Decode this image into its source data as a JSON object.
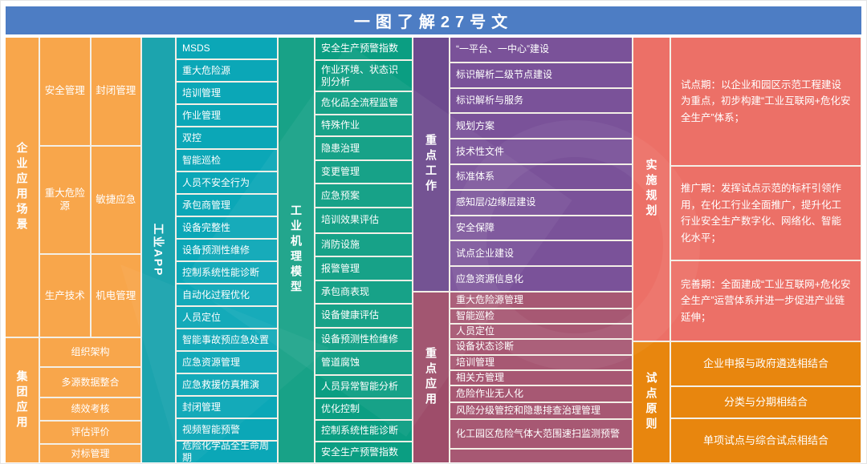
{
  "header": {
    "title": "一图了解27号文"
  },
  "colors": {
    "header_bg": "#4d7dc4",
    "orange": "#f8a64b",
    "teal_label": "#1ca4ae",
    "teal_item": "#0ba7b7",
    "green_label": "#18a287",
    "green_item": "#0b9e82",
    "purple_label": "#6d4a8e",
    "purple_item": "#7a5299",
    "maroon_label": "#9e4d6a",
    "maroon_item": "#a75873",
    "salmon": "#ec7067",
    "orange2": "#e8860e",
    "divider": "#f3efe6"
  },
  "enterprise_app": {
    "label": "企业应用场景",
    "rows": [
      [
        "安全管理",
        "封闭管理"
      ],
      [
        "重大危险源",
        "敏捷应急"
      ],
      [
        "生产技术",
        "机电管理"
      ]
    ]
  },
  "group_app": {
    "label": "集团应用",
    "items": [
      {
        "text": "组织架构",
        "h": 1.3
      },
      {
        "text": "多源数据整合",
        "h": 1.4
      },
      {
        "text": "绩效考核",
        "h": 1.0
      },
      {
        "text": "评估评价",
        "h": 1.0
      },
      {
        "text": "对标管理",
        "h": 0.8
      }
    ]
  },
  "industrial_app": {
    "label": "工业APP",
    "items": [
      "MSDS",
      "重大危险源",
      "培训管理",
      "作业管理",
      "双控",
      "智能巡检",
      "人员不安全行为",
      "承包商管理",
      "设备完整性",
      "设备预测性维修",
      "控制系统性能诊断",
      "自动化过程优化",
      "人员定位",
      "智能事故预应急处置",
      "应急资源管理",
      "应急救援仿真推演",
      "封闭管理",
      "视频智能预警",
      "危险化学品全生命周期"
    ]
  },
  "mechanism_model": {
    "label": "工业机理模型",
    "items": [
      {
        "text": "安全生产预警指数",
        "h": 1
      },
      {
        "text": "作业环境、状态识别分析",
        "h": 1.35
      },
      {
        "text": "危化品全流程监管",
        "h": 1
      },
      {
        "text": "特殊作业",
        "h": 0.9
      },
      {
        "text": "隐患治理",
        "h": 1
      },
      {
        "text": "变更管理",
        "h": 1
      },
      {
        "text": "应急预案",
        "h": 1
      },
      {
        "text": "培训效果评估",
        "h": 1.1
      },
      {
        "text": "消防设施",
        "h": 1
      },
      {
        "text": "报警管理",
        "h": 1
      },
      {
        "text": "承包商表现",
        "h": 1
      },
      {
        "text": "设备健康评估",
        "h": 1
      },
      {
        "text": "设备预测性检维修",
        "h": 1
      },
      {
        "text": "管道腐蚀",
        "h": 1
      },
      {
        "text": "人员异常智能分析",
        "h": 1
      },
      {
        "text": "优化控制",
        "h": 0.9
      },
      {
        "text": "控制系统性能诊断",
        "h": 0.9
      },
      {
        "text": "安全生产预警指数",
        "h": 0.9
      }
    ]
  },
  "key_work": {
    "label": "重点工作",
    "items": [
      "“一平台、一中心”建设",
      "标识解析二级节点建设",
      "标识解析与服务",
      "规划方案",
      "技术性文件",
      "标准体系",
      "感知层/边缘层建设",
      "安全保障",
      "试点企业建设",
      "应急资源信息化"
    ]
  },
  "key_applications": {
    "label": "重点应用",
    "items": [
      {
        "text": "重大危险源管理",
        "h": 1
      },
      {
        "text": "智能巡检",
        "h": 0.9
      },
      {
        "text": "人员定位",
        "h": 0.9
      },
      {
        "text": "设备状态诊断",
        "h": 1
      },
      {
        "text": "培训管理",
        "h": 0.9
      },
      {
        "text": "相关方管理",
        "h": 0.9
      },
      {
        "text": "危险作业无人化",
        "h": 1
      },
      {
        "text": "风险分级管控和隐患排查治理管理",
        "h": 1
      },
      {
        "text": "化工园区危险气体大范围速扫监测预警",
        "h": 2.0
      },
      {
        "text": "",
        "h": 0.85
      }
    ]
  },
  "implementation_plan": {
    "label": "实施规划",
    "phases": [
      {
        "text": "试点期：以企业和园区示范工程建设为重点，初步构建“工业互联网+危化安全生产”体系；",
        "h": 1.7
      },
      {
        "text": "推广期：发挥试点示范的标杆引领作用，在化工行业全面推广，提升化工行业安全生产数字化、网络化、智能化水平；",
        "h": 1.2
      },
      {
        "text": "完善期：全面建成“工业互联网+危化安全生产”运营体系并进一步促进产业链延伸；",
        "h": 1.0
      }
    ]
  },
  "pilot_principles": {
    "label": "试点原则",
    "items": [
      {
        "text": "企业申报与政府遴选相结合",
        "h": 1.45
      },
      {
        "text": "分类与分期相结合",
        "h": 1.0
      },
      {
        "text": "单项试点与综合试点相结合",
        "h": 1.45
      }
    ]
  }
}
